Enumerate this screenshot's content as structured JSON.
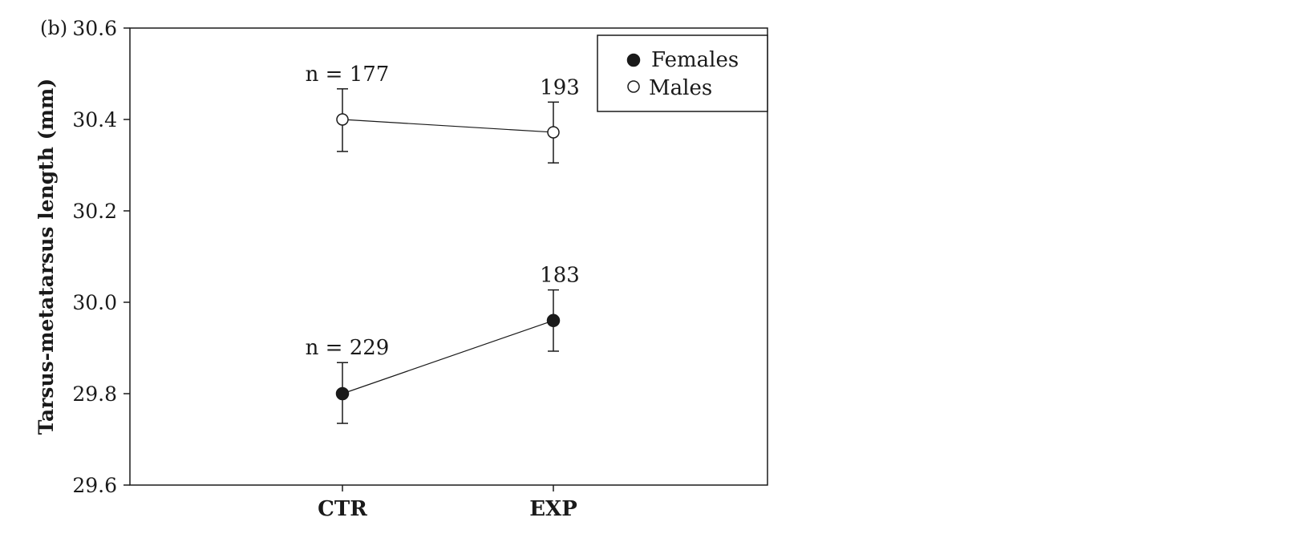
{
  "panel_label": "(b)",
  "chart_data": {
    "type": "line",
    "ylabel": "Tarsus-metatarsus length (mm)",
    "xlabel": "",
    "categories": [
      "CTR",
      "EXP"
    ],
    "ylim": [
      29.6,
      30.6
    ],
    "yticks": [
      "29.6",
      "29.8",
      "30.0",
      "30.2",
      "30.4",
      "30.6"
    ],
    "grid": false,
    "legend_position": "top-right",
    "series": [
      {
        "name": "Females",
        "marker": "filled-circle",
        "values": [
          29.8,
          29.96
        ],
        "err_low": [
          29.735,
          29.893
        ],
        "err_high": [
          29.868,
          30.027
        ],
        "n_labels": [
          "n = 229",
          "183"
        ]
      },
      {
        "name": "Males",
        "marker": "open-circle",
        "values": [
          30.4,
          30.372
        ],
        "err_low": [
          30.33,
          30.305
        ],
        "err_high": [
          30.467,
          30.438
        ],
        "n_labels": [
          "n = 177",
          "193"
        ]
      }
    ]
  }
}
